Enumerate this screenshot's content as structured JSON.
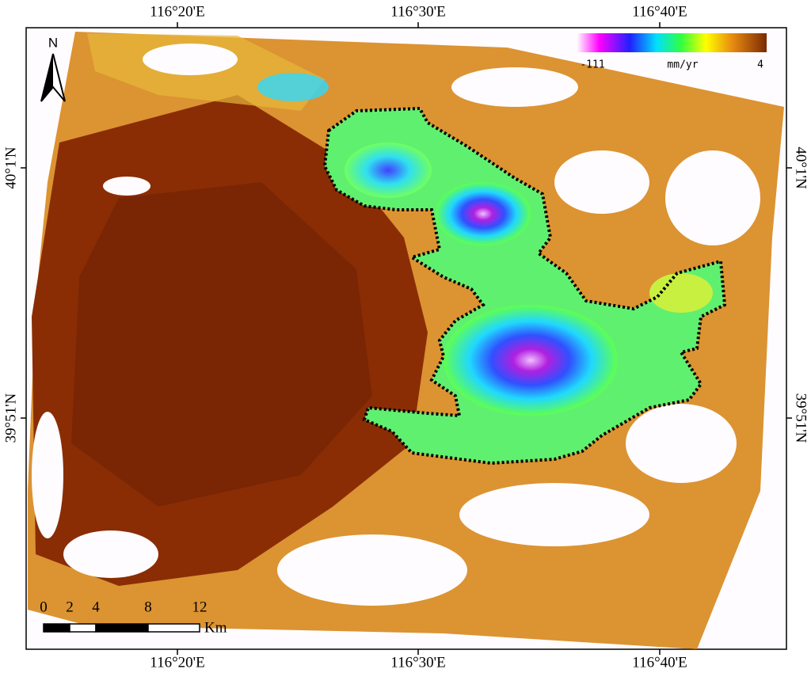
{
  "map": {
    "top_labels": [
      "116°20'E",
      "116°30'E",
      "116°40'E"
    ],
    "bottom_labels": [
      "116°20'E",
      "116°30'E",
      "116°40'E"
    ],
    "left_labels": [
      "40°1'N",
      "39°51'N"
    ],
    "right_labels": [
      "40°1'N",
      "39°51'N"
    ],
    "north": "N",
    "legend": {
      "min": "-111",
      "unit": "mm/yr",
      "max": "4"
    },
    "scale_bar": {
      "ticks": [
        "0",
        "2",
        "4",
        "8",
        "12"
      ],
      "unit": "Km"
    }
  }
}
